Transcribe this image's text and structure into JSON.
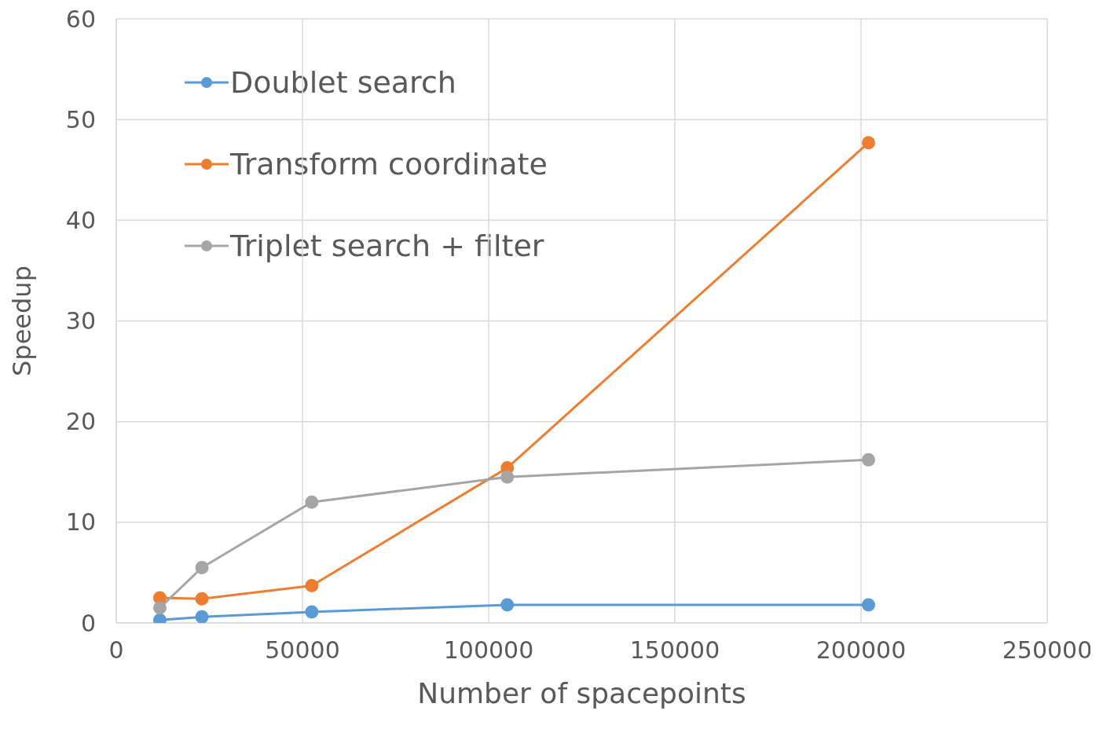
{
  "chart_data": {
    "type": "line",
    "xlabel": "Number of spacepoints",
    "ylabel": "Speedup",
    "x": [
      11700,
      23000,
      52500,
      105000,
      202000
    ],
    "series": [
      {
        "name": "Doublet search",
        "color": "#5b9bd5",
        "values": [
          0.3,
          0.6,
          1.1,
          1.8,
          1.8
        ]
      },
      {
        "name": "Transform coordinate",
        "color": "#ed7d31",
        "values": [
          2.5,
          2.4,
          3.7,
          15.4,
          47.7
        ]
      },
      {
        "name": "Triplet search + filter",
        "color": "#a5a5a5",
        "values": [
          1.5,
          5.5,
          12.0,
          14.5,
          16.2
        ]
      }
    ],
    "xlim": [
      0,
      250000
    ],
    "xticks": [
      0,
      50000,
      100000,
      150000,
      200000,
      250000
    ],
    "ylim": [
      0,
      60
    ],
    "yticks": [
      0,
      10,
      20,
      30,
      40,
      50,
      60
    ],
    "grid": true,
    "legend": "top left",
    "marker": "circle",
    "line_style": "solid"
  }
}
